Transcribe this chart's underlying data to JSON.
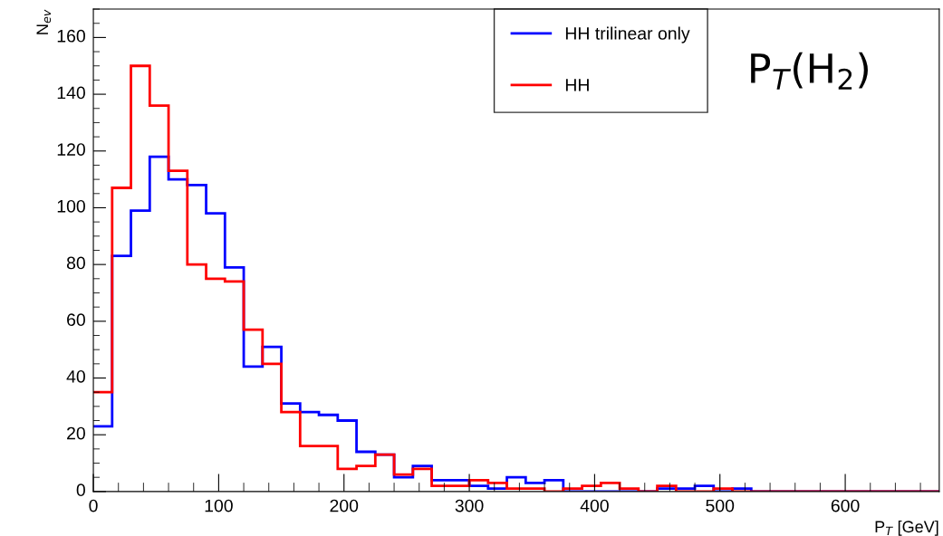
{
  "chart_data": {
    "type": "histogram",
    "xlabel": "P$_{T}$ [GeV]",
    "ylabel": "N$_{ev}$",
    "annotations": [
      "P$_{T}$(H$_{2}$)"
    ],
    "bins": [
      0,
      15,
      30,
      45,
      60,
      75,
      90,
      105,
      120,
      135,
      150,
      165,
      180,
      195,
      210,
      225,
      240,
      255,
      270,
      285,
      300,
      315,
      330,
      345,
      360,
      375,
      390,
      405,
      420,
      435,
      450,
      465,
      480,
      495,
      510,
      525,
      540,
      555,
      570,
      585,
      600,
      615,
      630,
      645,
      660,
      675
    ],
    "series": [
      {
        "name": "HH trilinear only",
        "color": "#0000ff",
        "values": [
          23,
          83,
          99,
          118,
          110,
          108,
          98,
          79,
          44,
          51,
          31,
          28,
          27,
          25,
          14,
          13,
          5,
          9,
          4,
          4,
          2,
          1,
          5,
          3,
          4,
          0,
          0,
          0,
          0,
          0,
          1,
          1,
          2,
          0,
          1,
          0,
          0,
          0,
          0,
          0,
          0,
          0,
          0,
          0,
          0
        ]
      },
      {
        "name": "HH",
        "color": "#ff0000",
        "values": [
          35,
          107,
          150,
          136,
          113,
          80,
          75,
          74,
          57,
          45,
          28,
          16,
          16,
          8,
          9,
          13,
          6,
          8,
          2,
          2,
          4,
          3,
          1,
          1,
          0,
          1,
          2,
          3,
          1,
          0,
          2,
          0,
          0,
          1,
          0,
          0,
          0,
          0,
          0,
          0,
          0,
          0,
          0,
          0,
          0
        ]
      }
    ],
    "xlim": [
      0,
      675
    ],
    "ylim": [
      0,
      170
    ],
    "xticks": [
      0,
      100,
      200,
      300,
      400,
      500,
      600
    ],
    "yticks": [
      0,
      20,
      40,
      60,
      80,
      100,
      120,
      140,
      160
    ],
    "legend": "top",
    "grid": false
  }
}
